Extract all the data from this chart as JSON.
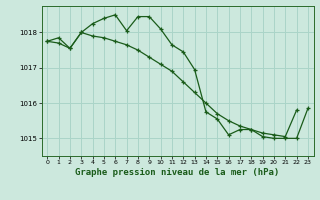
{
  "background_color": "#cce8dd",
  "grid_color": "#aad4c8",
  "line_color": "#1a5c1a",
  "xlabel": "Graphe pression niveau de la mer (hPa)",
  "xlabel_fontsize": 6.5,
  "ylabel_ticks": [
    1015,
    1016,
    1017,
    1018
  ],
  "xticks": [
    0,
    1,
    2,
    3,
    4,
    5,
    6,
    7,
    8,
    9,
    10,
    11,
    12,
    13,
    14,
    15,
    16,
    17,
    18,
    19,
    20,
    21,
    22,
    23
  ],
  "xlim": [
    -0.5,
    23.5
  ],
  "ylim": [
    1014.5,
    1018.75
  ],
  "series1_x": [
    0,
    1,
    2,
    3,
    4,
    5,
    6,
    7,
    8,
    9,
    10,
    11,
    12,
    13,
    14,
    15,
    16,
    17,
    18,
    19,
    20,
    21,
    22,
    23
  ],
  "series1_y": [
    1017.75,
    1017.85,
    1017.55,
    1018.0,
    1018.25,
    1018.4,
    1018.5,
    1018.05,
    1018.45,
    1018.45,
    1018.1,
    1017.65,
    1017.45,
    1016.95,
    1015.75,
    1015.55,
    1015.1,
    1015.25,
    1015.25,
    1015.05,
    1015.0,
    1015.0,
    1015.0,
    1015.85
  ],
  "series2_x": [
    0,
    1,
    2,
    3,
    4,
    5,
    6,
    7,
    8,
    9,
    10,
    11,
    12,
    13,
    14,
    15,
    16,
    17,
    18,
    19,
    20,
    21,
    22
  ],
  "series2_y": [
    1017.75,
    1017.7,
    1017.55,
    1018.0,
    1017.9,
    1017.85,
    1017.75,
    1017.65,
    1017.5,
    1017.3,
    1017.1,
    1016.9,
    1016.6,
    1016.3,
    1016.0,
    1015.7,
    1015.5,
    1015.35,
    1015.25,
    1015.15,
    1015.1,
    1015.05,
    1015.8
  ]
}
